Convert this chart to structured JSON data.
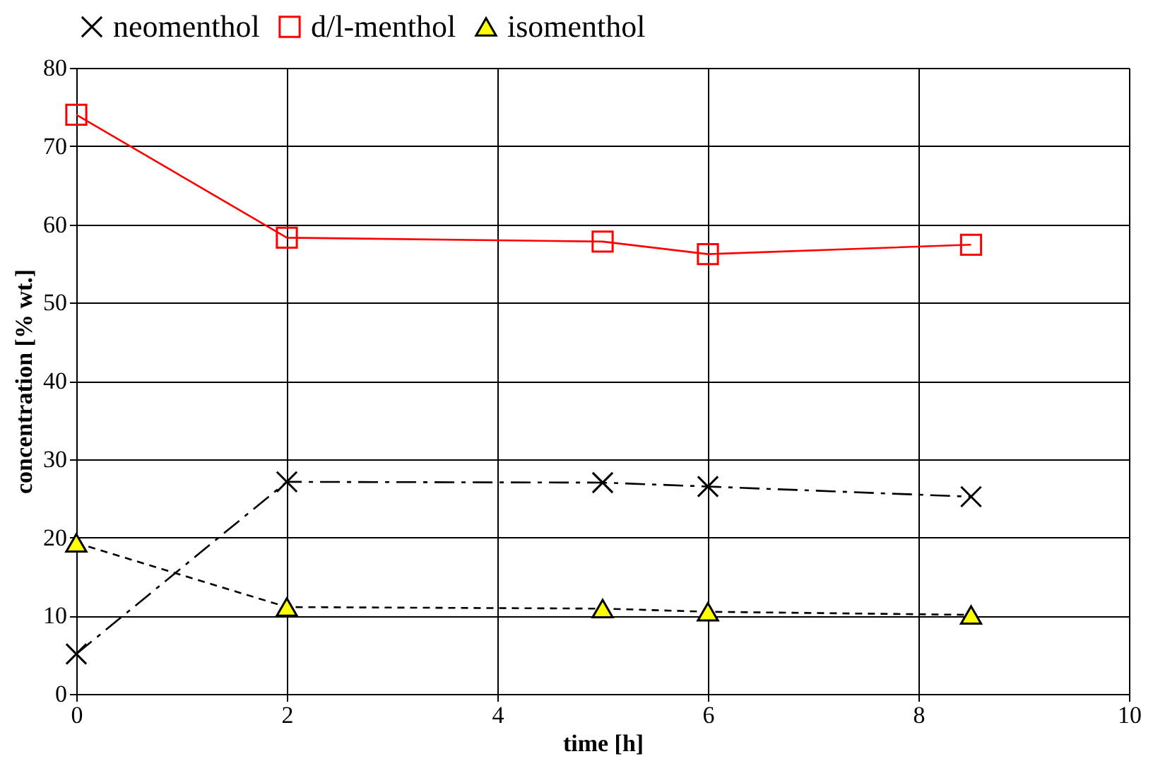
{
  "chart_data": {
    "type": "line",
    "xlabel": "time [h]",
    "ylabel": "concentration [% wt.]",
    "xlim": [
      0,
      10
    ],
    "xticks": [
      0,
      2,
      4,
      6,
      8,
      10
    ],
    "ylim": [
      0,
      80
    ],
    "yticks": [
      0,
      10,
      20,
      30,
      40,
      50,
      60,
      70,
      80
    ],
    "x": [
      0,
      2,
      5,
      6,
      8.5
    ],
    "grid": true,
    "legend": "top",
    "series": [
      {
        "name": "neomenthol",
        "color": "#000000",
        "values": [
          5.1,
          27.1,
          27,
          26.5,
          25.2
        ],
        "marker": "cross",
        "line_style": "dashed"
      },
      {
        "name": "d/l-menthol",
        "color": "#ff0000",
        "values": [
          74,
          58.3,
          57.8,
          56.2,
          57.4
        ],
        "marker": "square",
        "line_style": "solid"
      },
      {
        "name": "isomenthol",
        "color": "#000000",
        "colors": [
          "#ffff00",
          "#ffff00",
          "#ffff00",
          "#ffff00",
          "#ffff00"
        ],
        "values": [
          19.3,
          11.1,
          10.9,
          10.5,
          10.1
        ],
        "marker": "triangle",
        "line_style": "dotted"
      }
    ]
  }
}
